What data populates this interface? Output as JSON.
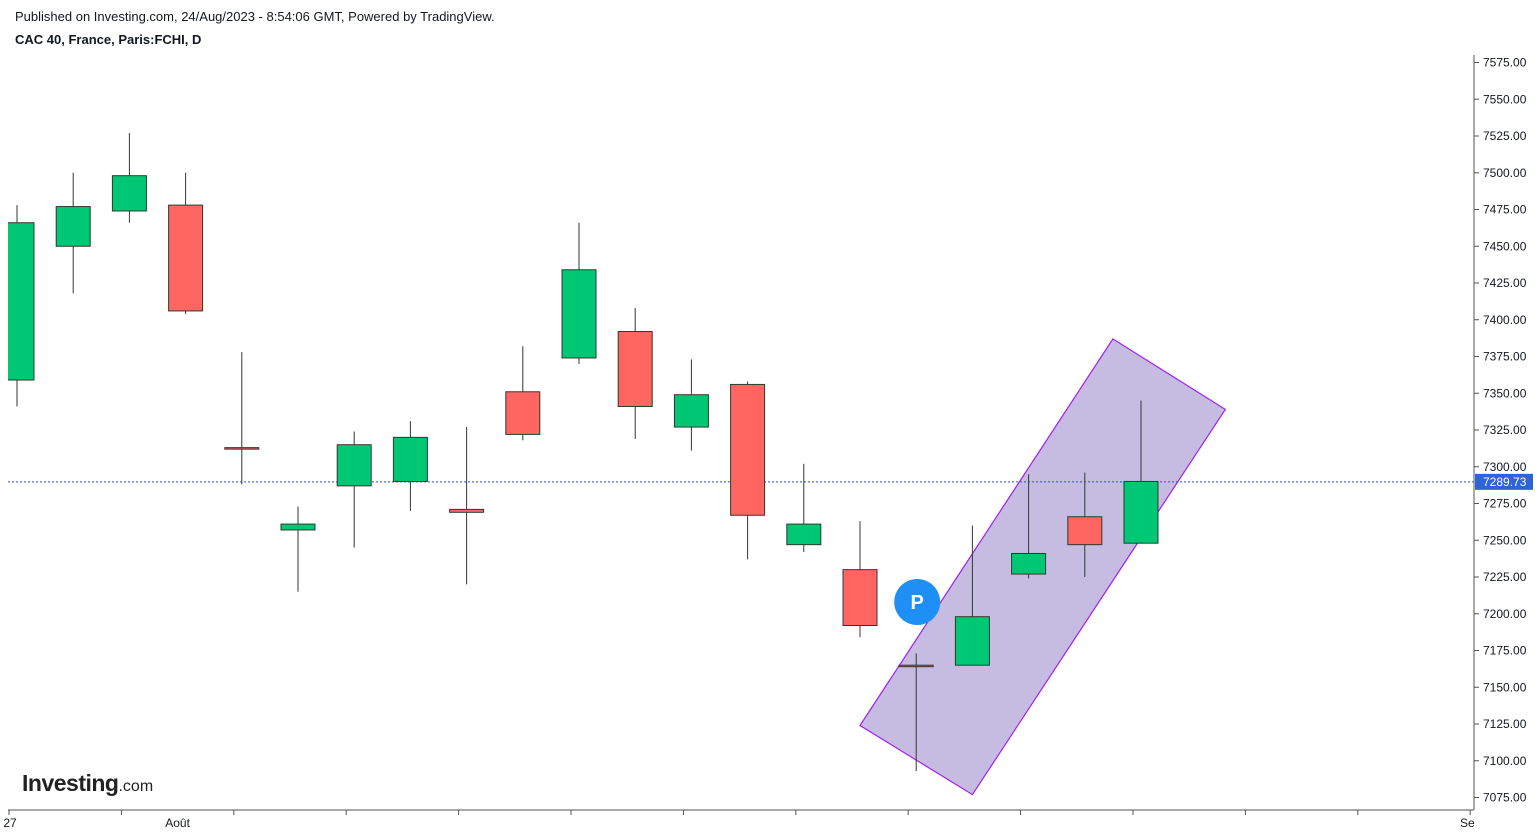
{
  "header": {
    "published": "Published on Investing.com, 24/Aug/2023 - 8:54:06 GMT, Powered by TradingView.",
    "symbol": "CAC 40, France, Paris:FCHI, D"
  },
  "logo": {
    "name": "Investing",
    "suffix": ".com"
  },
  "colors": {
    "up": "#00c774",
    "down": "#ff6661",
    "wick": "#2e3a2f",
    "price_line": "#2157d6",
    "price_label_bg": "#2d64d8",
    "band_fill": "#b6a8d8",
    "band_stroke": "#a020f0",
    "marker": "#1e8ff5"
  },
  "chart_data": {
    "type": "candlestick",
    "interval": "D",
    "ylim": [
      7062.5,
      7587.5
    ],
    "yticks": [
      "7575.00",
      "7550.00",
      "7525.00",
      "7500.00",
      "7475.00",
      "7450.00",
      "7425.00",
      "7400.00",
      "7375.00",
      "7350.00",
      "7325.00",
      "7300.00",
      "7275.00",
      "7250.00",
      "7225.00",
      "7200.00",
      "7175.00",
      "7150.00",
      "7125.00",
      "7100.00",
      "7075.00"
    ],
    "xticks": [
      {
        "label": "27",
        "index": 0
      },
      {
        "label": "Août",
        "index": 3
      },
      {
        "label": "Se",
        "index": 26
      }
    ],
    "candles": [
      {
        "o": 7359,
        "h": 7478,
        "l": 7341,
        "c": 7466
      },
      {
        "o": 7450,
        "h": 7500,
        "l": 7418,
        "c": 7477
      },
      {
        "o": 7474,
        "h": 7527,
        "l": 7466,
        "c": 7498
      },
      {
        "o": 7478,
        "h": 7500,
        "l": 7404,
        "c": 7406
      },
      {
        "o": 7313,
        "h": 7378,
        "l": 7288,
        "c": 7312
      },
      {
        "o": 7257,
        "h": 7273,
        "l": 7215,
        "c": 7261
      },
      {
        "o": 7287,
        "h": 7324,
        "l": 7245,
        "c": 7315
      },
      {
        "o": 7290,
        "h": 7331,
        "l": 7270,
        "c": 7320
      },
      {
        "o": 7271,
        "h": 7327,
        "l": 7220,
        "c": 7269
      },
      {
        "o": 7351,
        "h": 7382,
        "l": 7318,
        "c": 7322
      },
      {
        "o": 7374,
        "h": 7466,
        "l": 7370,
        "c": 7434
      },
      {
        "o": 7392,
        "h": 7408,
        "l": 7319,
        "c": 7341
      },
      {
        "o": 7327,
        "h": 7373,
        "l": 7311,
        "c": 7349
      },
      {
        "o": 7356,
        "h": 7358,
        "l": 7237,
        "c": 7267
      },
      {
        "o": 7247,
        "h": 7302,
        "l": 7242,
        "c": 7261
      },
      {
        "o": 7230,
        "h": 7263,
        "l": 7184,
        "c": 7192
      },
      {
        "o": 7165,
        "h": 7173,
        "l": 7093,
        "c": 7164
      },
      {
        "o": 7165,
        "h": 7260,
        "l": 7165,
        "c": 7198
      },
      {
        "o": 7227,
        "h": 7295,
        "l": 7224,
        "c": 7241
      },
      {
        "o": 7266,
        "h": 7296,
        "l": 7225,
        "c": 7247
      },
      {
        "o": 7248,
        "h": 7345,
        "l": 7248,
        "c": 7290
      }
    ],
    "last_price": "7289.73",
    "marker": {
      "label": "P",
      "index": 16,
      "price": 7208
    },
    "band": {
      "points": [
        {
          "index": 15.0,
          "price": 7124
        },
        {
          "index": 19.5,
          "price": 7387
        },
        {
          "index": 21.5,
          "price": 7339
        },
        {
          "index": 17.0,
          "price": 7077
        }
      ]
    }
  }
}
